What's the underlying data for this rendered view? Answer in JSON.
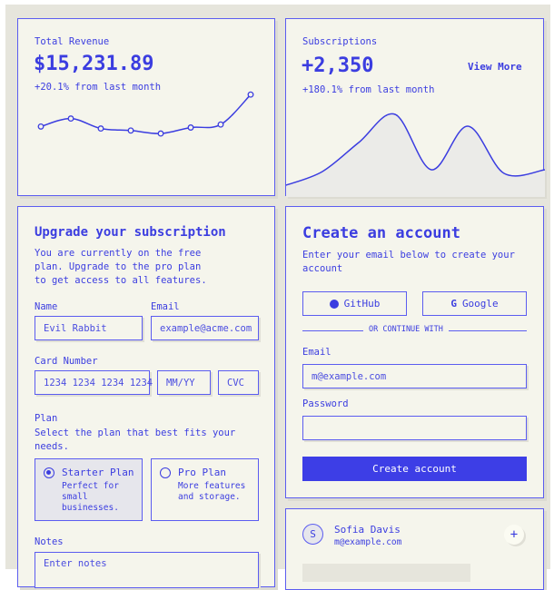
{
  "revenue": {
    "label": "Total Revenue",
    "value": "$15,231.89",
    "change": "+20.1% from last month"
  },
  "subscriptions": {
    "label": "Subscriptions",
    "value": "+2,350",
    "change": "+180.1% from last month",
    "view_more": "View More"
  },
  "chart_data": [
    {
      "type": "line",
      "values": [
        56,
        64,
        54,
        52,
        49,
        55,
        58,
        88
      ]
    },
    {
      "type": "area",
      "values": [
        13,
        28,
        60,
        91,
        30,
        78,
        26,
        30
      ]
    }
  ],
  "upgrade": {
    "title": "Upgrade your subscription",
    "description": "You are currently on the free plan. Upgrade to the pro plan to get access to all features.",
    "name_label": "Name",
    "name_value": "Evil Rabbit",
    "email_label": "Email",
    "email_placeholder": "example@acme.com",
    "card_label": "Card Number",
    "card_placeholder": "1234 1234 1234 1234",
    "expiry_placeholder": "MM/YY",
    "cvc_placeholder": "CVC",
    "plan_label": "Plan",
    "plan_description": "Select the plan that best fits your needs.",
    "plans": [
      {
        "name": "Starter Plan",
        "desc": "Perfect for small businesses.",
        "selected": true
      },
      {
        "name": "Pro Plan",
        "desc": "More features and storage.",
        "selected": false
      }
    ],
    "notes_label": "Notes",
    "notes_placeholder": "Enter notes"
  },
  "create": {
    "title": "Create an account",
    "description": "Enter your email below to create your account",
    "github": "GitHub",
    "google": "Google",
    "divider": "OR CONTINUE WITH",
    "email_label": "Email",
    "email_value": "m@example.com",
    "password_label": "Password",
    "submit": "Create account"
  },
  "member": {
    "initial": "S",
    "name": "Sofia Davis",
    "email": "m@example.com",
    "add": "+"
  },
  "colors": {
    "accent": "#3d3ee6",
    "background": "#e6e5dc",
    "card": "#f5f5ec"
  }
}
